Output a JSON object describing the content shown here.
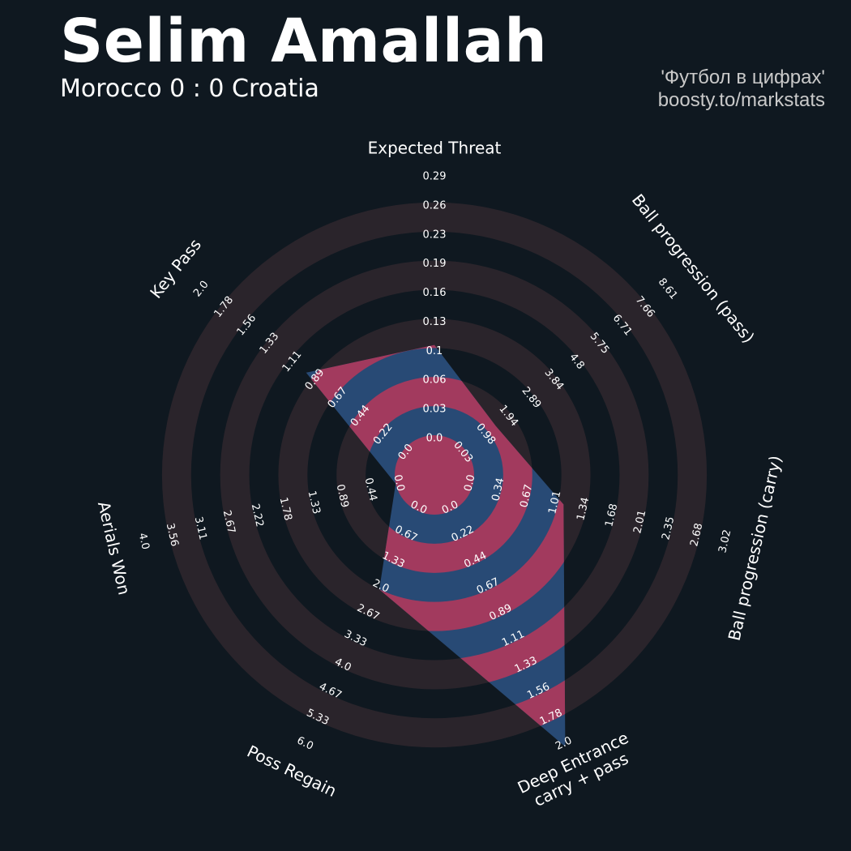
{
  "header": {
    "title": "Selim Amallah",
    "subtitle": "Morocco 0 : 0 Croatia",
    "credit_line1": "'Футбол в цифрах'",
    "credit_line2": "boosty.to/markstats"
  },
  "colors": {
    "background": "#0f1820",
    "ring_band": "#2a242b",
    "fill_blue": "#284a75",
    "fill_pink": "#a23a5e",
    "text": "#ffffff"
  },
  "chart_data": {
    "type": "radar",
    "title": "Selim Amallah",
    "subtitle": "Morocco 0 : 0 Croatia",
    "grid": true,
    "legend": "none",
    "axes": [
      {
        "name": "Expected Threat",
        "label_lines": [
          "Expected Threat"
        ],
        "min": 0.0,
        "max": 0.29,
        "value": 0.1,
        "ticks": [
          "0.0",
          "0.03",
          "0.06",
          "0.1",
          "0.13",
          "0.16",
          "0.19",
          "0.23",
          "0.26",
          "0.29"
        ]
      },
      {
        "name": "Ball progression (pass)",
        "label_lines": [
          "Ball progression (pass)"
        ],
        "min": 0.03,
        "max": 8.61,
        "value": 1.3,
        "ticks": [
          "0.03",
          "0.98",
          "1.94",
          "2.89",
          "3.84",
          "4.8",
          "5.75",
          "6.71",
          "7.66",
          "8.61"
        ]
      },
      {
        "name": "Ball progression (carry)",
        "label_lines": [
          "Ball progression (carry)"
        ],
        "min": 0.0,
        "max": 3.02,
        "value": 1.07,
        "ticks": [
          "0.0",
          "0.34",
          "0.67",
          "1.01",
          "1.34",
          "1.68",
          "2.01",
          "2.35",
          "2.68",
          "3.02"
        ]
      },
      {
        "name": "Deep Entrance carry + pass",
        "label_lines": [
          "Deep Entrance",
          "carry + pass"
        ],
        "min": 0.0,
        "max": 2.0,
        "value": 2.0,
        "ticks": [
          "0.0",
          "0.22",
          "0.44",
          "0.67",
          "0.89",
          "1.11",
          "1.33",
          "1.56",
          "1.78",
          "2.0"
        ]
      },
      {
        "name": "Poss Regain",
        "label_lines": [
          "Poss Regain"
        ],
        "min": 0.0,
        "max": 6.0,
        "value": 2.0,
        "ticks": [
          "0.0",
          "0.67",
          "1.33",
          "2.0",
          "2.67",
          "3.33",
          "4.0",
          "4.67",
          "5.33",
          "6.0"
        ]
      },
      {
        "name": "Aerials Won",
        "label_lines": [
          "Aerials Won"
        ],
        "min": 0.0,
        "max": 4.0,
        "value": 0.0,
        "ticks": [
          "0.0",
          "0.44",
          "0.89",
          "1.33",
          "1.78",
          "2.22",
          "2.67",
          "3.11",
          "3.56",
          "4.0"
        ]
      },
      {
        "name": "Key Pass",
        "label_lines": [
          "Key Pass"
        ],
        "min": 0.0,
        "max": 2.0,
        "value": 0.95,
        "ticks": [
          "0.0",
          "0.22",
          "0.44",
          "0.67",
          "0.89",
          "1.11",
          "1.33",
          "1.56",
          "1.78",
          "2.0"
        ]
      }
    ]
  }
}
